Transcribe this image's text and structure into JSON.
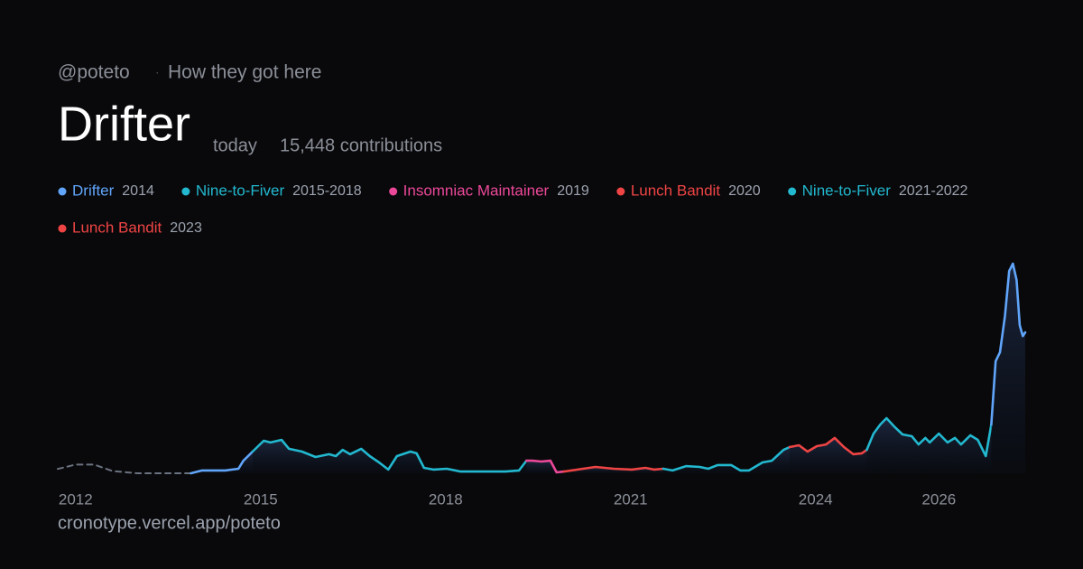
{
  "chart_data": {
    "type": "line",
    "handle": "@poteto",
    "separator": "·",
    "subtitle": "How they got here",
    "title": "Drifter",
    "period": "today",
    "contributions": "15,448 contributions",
    "footer": "cronotype.vercel.app/poteto",
    "legend": [
      {
        "name": "Drifter",
        "years": "2014",
        "color": "#60a5fa"
      },
      {
        "name": "Nine-to-Fiver",
        "years": "2015-2018",
        "color": "#22b8cf"
      },
      {
        "name": "Insomniac Maintainer",
        "years": "2019",
        "color": "#ec4899"
      },
      {
        "name": "Lunch Bandit",
        "years": "2020",
        "color": "#ef4444"
      },
      {
        "name": "Nine-to-Fiver",
        "years": "2021-2022",
        "color": "#22b8cf"
      },
      {
        "name": "Lunch Bandit",
        "years": "2023",
        "color": "#ef4444"
      }
    ],
    "xlim": [
      2011.71,
      2027.4
    ],
    "ylim": [
      0,
      100
    ],
    "xticks": [
      2012,
      2015,
      2018,
      2021,
      2024,
      2026
    ],
    "series": [
      {
        "color": "#6b7280",
        "style": "dashed",
        "x": [
          2011.71,
          2012.0,
          2012.3,
          2012.6,
          2013.0,
          2013.5,
          2013.87
        ],
        "values": [
          2,
          4,
          4,
          1,
          0,
          0,
          0
        ]
      },
      {
        "color": "#60a5fa",
        "x": [
          2013.87,
          2014.05,
          2014.43,
          2014.64,
          2014.72,
          2014.87
        ],
        "values": [
          0,
          1.3,
          1.3,
          2.1,
          5.8,
          10
        ]
      },
      {
        "color": "#22b8cf",
        "x": [
          2014.87,
          2015.05,
          2015.16,
          2015.34,
          2015.46,
          2015.67,
          2015.89,
          2016.11,
          2016.22,
          2016.33,
          2016.45,
          2016.63,
          2016.77,
          2016.92,
          2017.07,
          2017.21,
          2017.43,
          2017.53,
          2017.65,
          2017.8,
          2018.02,
          2018.24,
          2018.53,
          2018.97,
          2019.19,
          2019.31
        ],
        "values": [
          10,
          15,
          14.2,
          15.4,
          11.3,
          10,
          7.5,
          8.8,
          7.9,
          10.8,
          8.8,
          11.3,
          7.9,
          5,
          1.7,
          7.9,
          10,
          9.2,
          2.5,
          1.7,
          2.1,
          0.8,
          0.8,
          0.8,
          1.3,
          5.8
        ]
      },
      {
        "color": "#ec4899",
        "x": [
          2019.31,
          2019.41,
          2019.55,
          2019.7,
          2019.8,
          2019.92
        ],
        "values": [
          5.8,
          5.8,
          5.4,
          5.8,
          0.4,
          0.8
        ]
      },
      {
        "color": "#ef4444",
        "x": [
          2019.92,
          2020.14,
          2020.43,
          2020.73,
          2021.02,
          2021.24,
          2021.38,
          2021.53
        ],
        "values": [
          0.8,
          1.7,
          2.9,
          2.1,
          1.7,
          2.5,
          1.7,
          2.1
        ]
      },
      {
        "color": "#22b8cf",
        "x": [
          2021.53,
          2021.68,
          2021.9,
          2022.12,
          2022.26,
          2022.41,
          2022.63,
          2022.78,
          2022.92,
          2023.14,
          2023.29,
          2023.48,
          2023.58
        ],
        "values": [
          2.1,
          1.3,
          3.3,
          2.9,
          2.1,
          3.8,
          3.8,
          1.3,
          1.3,
          5,
          5.8,
          10.8,
          12.1
        ]
      },
      {
        "color": "#ef4444",
        "x": [
          2023.58,
          2023.73,
          2023.87,
          2024.02,
          2024.17,
          2024.31,
          2024.46,
          2024.61,
          2024.75,
          2024.83
        ],
        "values": [
          12.1,
          12.9,
          10,
          12.5,
          13.3,
          16.3,
          12.1,
          8.8,
          9.2,
          10.8
        ]
      },
      {
        "color": "#22b8cf",
        "x": [
          2024.83,
          2024.94,
          2025.05,
          2025.15,
          2025.27,
          2025.41,
          2025.56,
          2025.67,
          2025.78,
          2025.85,
          2026.0,
          2026.14,
          2026.26,
          2026.36,
          2026.51,
          2026.63,
          2026.76,
          2026.85
        ],
        "values": [
          10.8,
          18.3,
          22.5,
          25.4,
          21.7,
          17.9,
          17.1,
          13.3,
          16.3,
          14.2,
          18.3,
          14.2,
          16.3,
          13.3,
          17.5,
          15.4,
          7.9,
          22.5
        ]
      },
      {
        "color": "#60a5fa",
        "x": [
          2026.85,
          2026.92,
          2026.99,
          2027.07,
          2027.14,
          2027.2,
          2027.26,
          2027.31,
          2027.36,
          2027.4
        ],
        "values": [
          22.5,
          51.7,
          55.8,
          72.5,
          93.3,
          96.7,
          89.2,
          68.3,
          63.3,
          65
        ]
      }
    ]
  }
}
